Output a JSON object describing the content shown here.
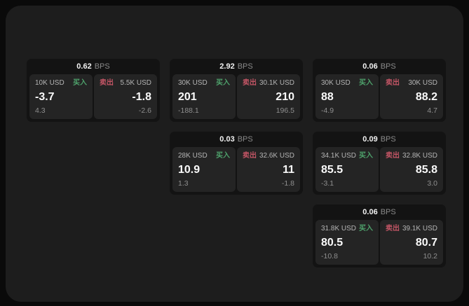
{
  "labels": {
    "bps_unit": "BPS",
    "buy": "买入",
    "sell": "卖出"
  },
  "colors": {
    "page_bg": "#0a0a0a",
    "window_bg": "#1d1d1d",
    "card_bg": "#131313",
    "panel_bg": "#242424",
    "buy_green": "#4ea16b",
    "sell_red": "#c25565",
    "primary_text": "#fafafa",
    "muted_text": "#8f8f8f"
  },
  "cards": [
    {
      "bps": "0.62",
      "buy": {
        "amount": "10K USD",
        "price": "-3.7",
        "sub": "4.3"
      },
      "sell": {
        "amount": "5.5K USD",
        "price": "-1.8",
        "sub": "-2.6"
      }
    },
    {
      "bps": "2.92",
      "buy": {
        "amount": "30K USD",
        "price": "201",
        "sub": "-188.1"
      },
      "sell": {
        "amount": "30.1K USD",
        "price": "210",
        "sub": "196.5"
      }
    },
    {
      "bps": "0.06",
      "buy": {
        "amount": "30K USD",
        "price": "88",
        "sub": "-4.9"
      },
      "sell": {
        "amount": "30K USD",
        "price": "88.2",
        "sub": "4.7"
      }
    },
    {
      "bps": "0.03",
      "buy": {
        "amount": "28K USD",
        "price": "10.9",
        "sub": "1.3"
      },
      "sell": {
        "amount": "32.6K USD",
        "price": "11",
        "sub": "-1.8"
      }
    },
    {
      "bps": "0.09",
      "buy": {
        "amount": "34.1K USD",
        "price": "85.5",
        "sub": "-3.1"
      },
      "sell": {
        "amount": "32.8K USD",
        "price": "85.8",
        "sub": "3.0"
      }
    },
    {
      "bps": "0.06",
      "buy": {
        "amount": "31.8K USD",
        "price": "80.5",
        "sub": "-10.8"
      },
      "sell": {
        "amount": "39.1K USD",
        "price": "80.7",
        "sub": "10.2"
      }
    }
  ]
}
